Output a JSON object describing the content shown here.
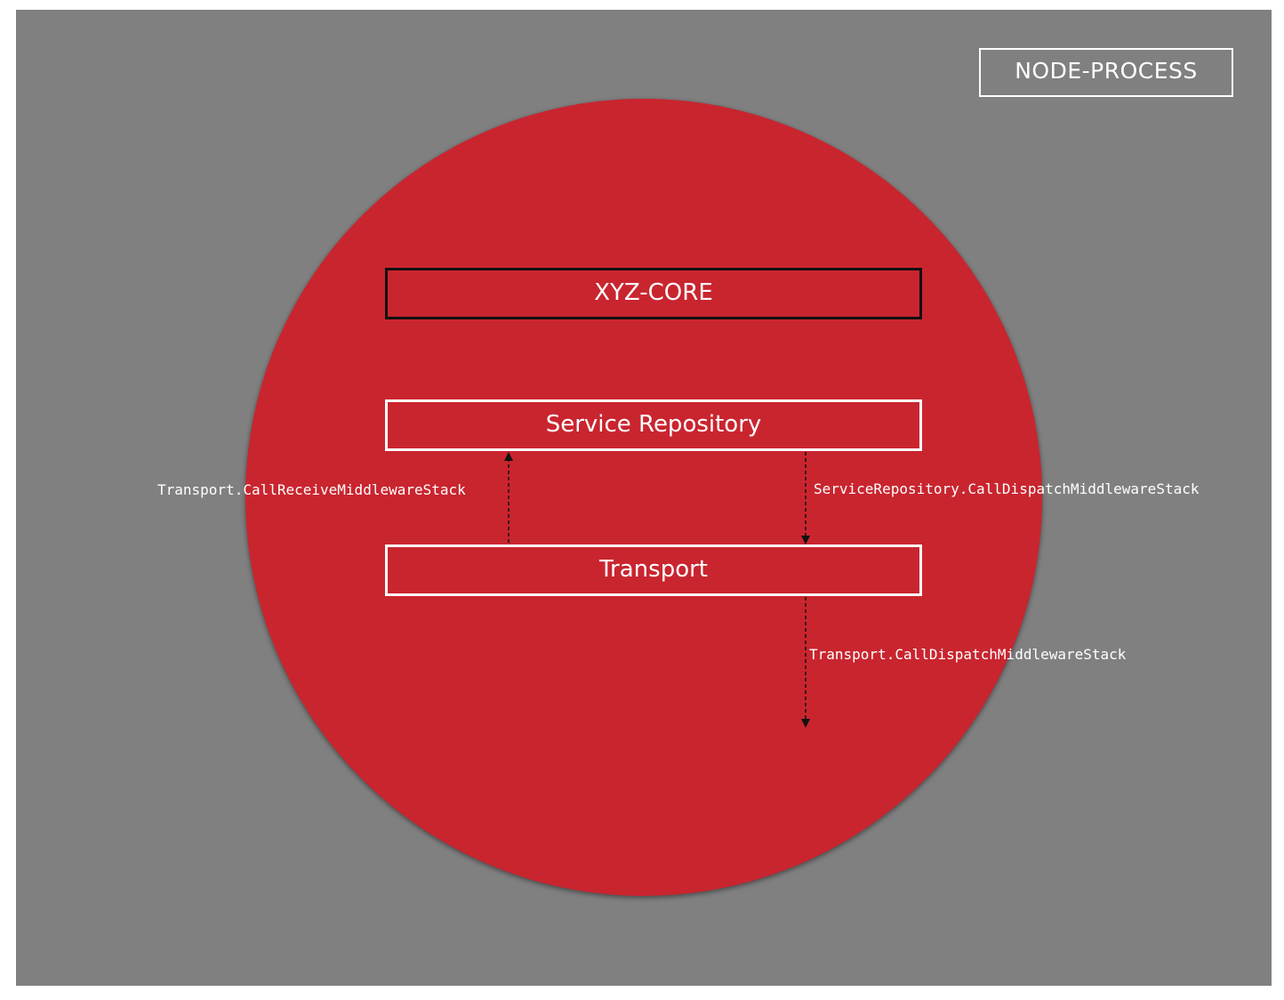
{
  "diagram": {
    "process_label": "NODE-PROCESS",
    "core_label": "XYZ-CORE",
    "repository_label": "Service Repository",
    "transport_label": "Transport",
    "edges": {
      "receive_label": "Transport.CallReceiveMiddlewareStack",
      "repo_dispatch_label": "ServiceRepository.CallDispatchMiddlewareStack",
      "transport_dispatch_label": "Transport.CallDispatchMiddlewareStack"
    }
  },
  "colors": {
    "background": "#808080",
    "circle": "#c9252f",
    "text": "#ffffff",
    "core_border": "#111111",
    "arrow": "#111111"
  }
}
